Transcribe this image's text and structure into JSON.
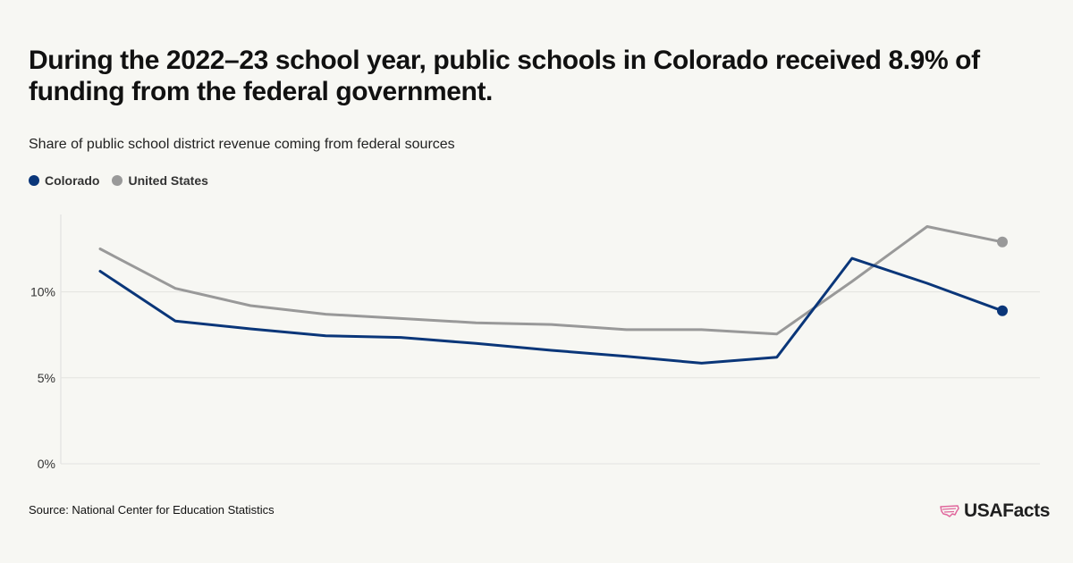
{
  "header": {
    "title": "During the 2022–23 school year, public schools in Colorado received 8.9% of funding from the federal government.",
    "subtitle": "Share of public school district revenue coming from federal sources"
  },
  "legend": [
    {
      "label": "Colorado",
      "color": "#0a3679"
    },
    {
      "label": "United States",
      "color": "#999999"
    }
  ],
  "footer": {
    "source": "Source: National Center for Education Statistics",
    "brand": "USAFacts",
    "brand_icon": "usa-map-icon",
    "brand_icon_color": "#e0679c"
  },
  "chart_data": {
    "type": "line",
    "title": "",
    "xlabel": "",
    "ylabel": "",
    "ylim": [
      0,
      14.5
    ],
    "y_ticks": [
      0,
      5,
      10
    ],
    "y_tick_labels": [
      "0%",
      "5%",
      "10%"
    ],
    "grid": true,
    "legend_position": "top-left",
    "series": [
      {
        "name": "Colorado",
        "color": "#0a3679",
        "values": [
          11.2,
          8.3,
          7.85,
          7.45,
          7.35,
          7.0,
          6.6,
          6.25,
          5.85,
          6.2,
          11.95,
          10.5,
          8.9
        ]
      },
      {
        "name": "United States",
        "color": "#999999",
        "values": [
          12.5,
          10.2,
          9.2,
          8.7,
          8.45,
          8.2,
          8.1,
          7.8,
          7.8,
          7.55,
          10.6,
          13.8,
          12.9
        ]
      }
    ]
  }
}
